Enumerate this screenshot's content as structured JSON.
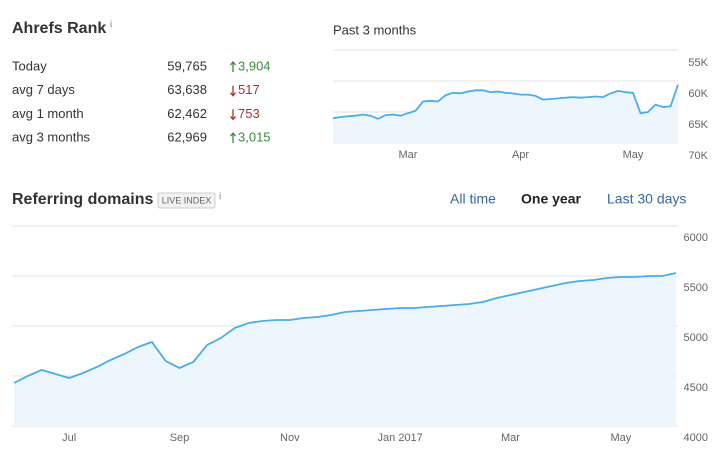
{
  "rank": {
    "title": "Ahrefs Rank",
    "info": "i",
    "rows": [
      {
        "label": "Today",
        "value": "59,765",
        "change": "3,904",
        "trend": "up"
      },
      {
        "label": "avg 7 days",
        "value": "63,638",
        "change": "517",
        "trend": "down"
      },
      {
        "label": "avg 1 month",
        "value": "62,462",
        "change": "753",
        "trend": "down"
      },
      {
        "label": "avg 3 months",
        "value": "62,969",
        "change": "3,015",
        "trend": "up"
      }
    ]
  },
  "chart_data": [
    {
      "type": "line",
      "title": "Past 3 months",
      "categories": [
        null,
        null,
        null,
        null,
        null,
        null,
        null,
        null,
        null,
        null,
        "Mar",
        null,
        null,
        null,
        null,
        null,
        null,
        null,
        null,
        null,
        null,
        null,
        null,
        null,
        null,
        "Apr",
        null,
        null,
        null,
        null,
        null,
        null,
        null,
        null,
        null,
        null,
        null,
        null,
        null,
        null,
        "May",
        null,
        null,
        null,
        null,
        null,
        null
      ],
      "values": [
        66000,
        65800,
        65700,
        65600,
        65400,
        65600,
        66100,
        65500,
        65400,
        65600,
        65200,
        64800,
        63300,
        63200,
        63300,
        62300,
        61900,
        62000,
        61700,
        61500,
        61500,
        61800,
        61700,
        61900,
        62000,
        62200,
        62200,
        62400,
        63000,
        62900,
        62800,
        62700,
        62600,
        62700,
        62600,
        62500,
        62600,
        62000,
        61600,
        61800,
        61900,
        65200,
        65000,
        63800,
        64200,
        64100,
        60600
      ],
      "color": "#4aaee6",
      "fill": "#eef6fd",
      "inverted": true,
      "ylim": [
        55000,
        70000
      ],
      "yticks": [
        {
          "value": 55000,
          "label": "55K"
        },
        {
          "value": 60000,
          "label": "60K"
        },
        {
          "value": 65000,
          "label": "65K"
        },
        {
          "value": 70000,
          "label": "70K"
        }
      ],
      "grid": true
    },
    {
      "type": "line",
      "title": "Referring domains",
      "badge": "LIVE INDEX",
      "info": "i",
      "tabs": [
        {
          "label": "All time",
          "active": false
        },
        {
          "label": "One year",
          "active": true
        },
        {
          "label": "Last 30 days",
          "active": false
        }
      ],
      "categories": [
        null,
        null,
        null,
        null,
        "Jul",
        null,
        null,
        null,
        null,
        null,
        null,
        null,
        "Sep",
        null,
        null,
        null,
        null,
        null,
        null,
        null,
        "Nov",
        null,
        null,
        null,
        null,
        null,
        null,
        null,
        "Jan 2017",
        null,
        null,
        null,
        null,
        null,
        null,
        null,
        "Mar",
        null,
        null,
        null,
        null,
        null,
        null,
        null,
        "May",
        null,
        null,
        null,
        null
      ],
      "values": [
        4430,
        4500,
        4560,
        4520,
        4480,
        4530,
        4590,
        4660,
        4720,
        4790,
        4840,
        4650,
        4580,
        4640,
        4810,
        4880,
        4980,
        5030,
        5050,
        5060,
        5060,
        5080,
        5090,
        5110,
        5140,
        5150,
        5160,
        5170,
        5180,
        5180,
        5190,
        5200,
        5210,
        5220,
        5240,
        5280,
        5310,
        5340,
        5370,
        5400,
        5430,
        5450,
        5460,
        5480,
        5490,
        5490,
        5500,
        5500,
        5530
      ],
      "color": "#4aaee6",
      "fill": "#eef6fd",
      "inverted": false,
      "ylim": [
        4000,
        6000
      ],
      "yticks": [
        4000,
        4500,
        5000,
        5500,
        6000
      ],
      "grid": true
    }
  ]
}
